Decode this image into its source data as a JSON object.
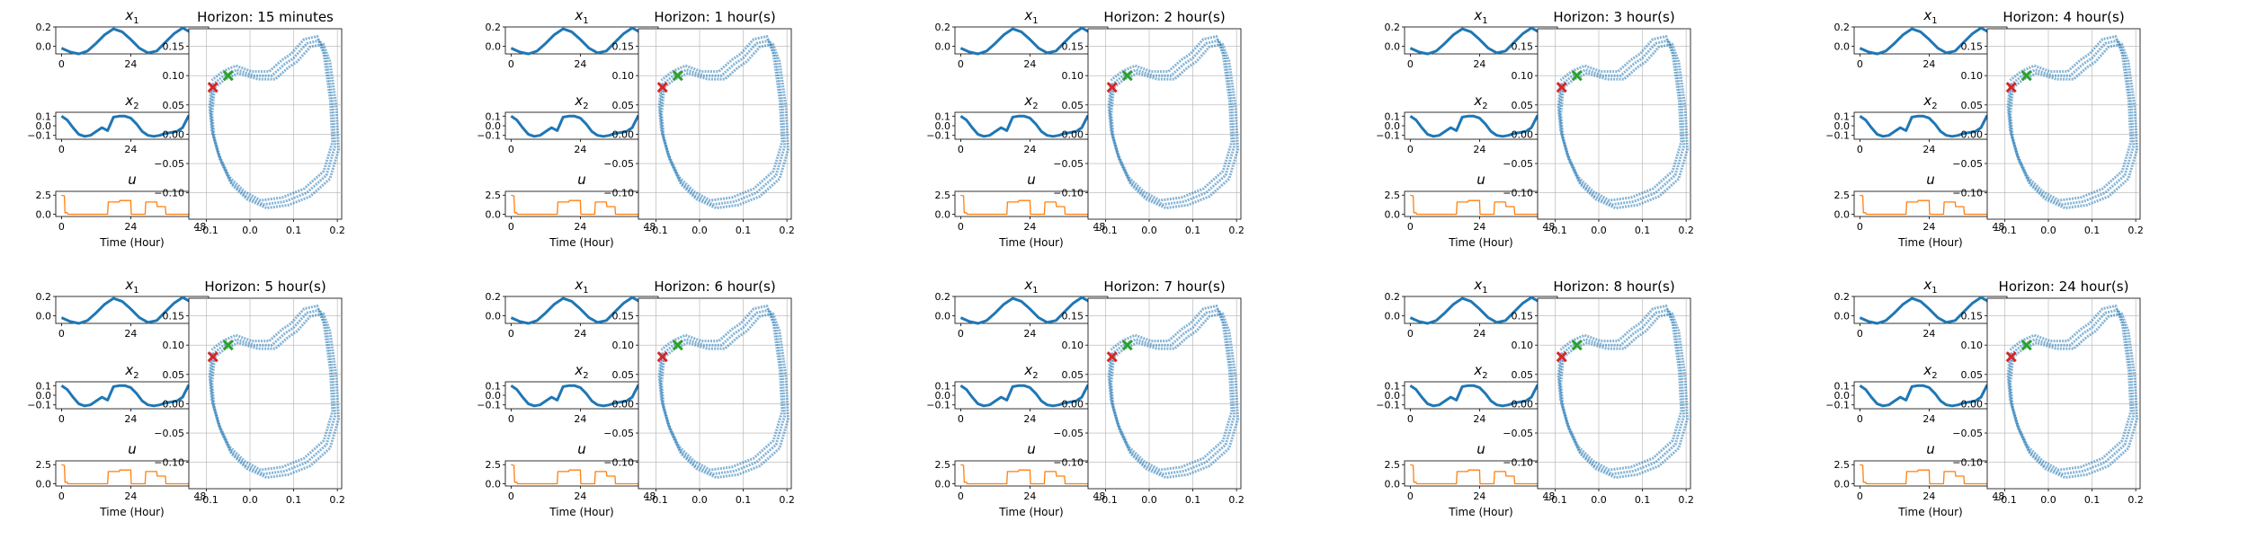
{
  "colors": {
    "state": "#1f77b4",
    "control": "#ff7f0e",
    "phase": "#1f77b4",
    "start_marker": "#d62728",
    "end_marker": "#2ca02c",
    "grid": "#b0b0b0"
  },
  "labels": {
    "x1": "x",
    "x1_sub": "1",
    "x2": "x",
    "x2_sub": "2",
    "u": "u",
    "time_axis": "Time (Hour)"
  },
  "chart_data": {
    "type": "line",
    "time_ticks": [
      0,
      24,
      48
    ],
    "x1": {
      "ylim": [
        -0.08,
        0.2
      ],
      "yticks": [
        "0.2",
        "0.0"
      ],
      "ytick_values": [
        0.2,
        0.0
      ],
      "t": [
        0,
        3,
        6,
        9,
        12,
        15,
        18,
        21,
        24,
        27,
        30,
        33,
        36,
        39,
        42,
        45,
        48,
        50
      ],
      "values": [
        -0.02,
        -0.06,
        -0.08,
        -0.05,
        0.03,
        0.12,
        0.18,
        0.15,
        0.07,
        -0.02,
        -0.07,
        -0.05,
        0.04,
        0.13,
        0.19,
        0.14,
        0.02,
        -0.03
      ]
    },
    "x2": {
      "ylim": [
        -0.14,
        0.14
      ],
      "yticks": [
        "0.1",
        "0.0",
        "−0.1"
      ],
      "ytick_values": [
        0.1,
        0.0,
        -0.1
      ],
      "t": [
        0,
        2,
        4,
        6,
        8,
        10,
        12,
        14,
        16,
        18,
        20,
        22,
        24,
        26,
        28,
        30,
        32,
        34,
        36,
        38,
        40,
        42,
        44,
        46,
        48,
        50
      ],
      "values": [
        0.1,
        0.06,
        -0.02,
        -0.09,
        -0.11,
        -0.1,
        -0.06,
        -0.02,
        -0.05,
        0.09,
        0.1,
        0.1,
        0.08,
        0.02,
        -0.06,
        -0.1,
        -0.11,
        -0.1,
        -0.08,
        -0.07,
        -0.06,
        -0.02,
        0.1,
        0.08,
        0.07,
        0.06
      ]
    },
    "u": {
      "ylim": [
        -0.3,
        3.0
      ],
      "yticks": [
        "2.5",
        "0.0"
      ],
      "ytick_values": [
        2.5,
        0.0
      ],
      "t": [
        0,
        1,
        1.2,
        2,
        2.2,
        16,
        16.2,
        20,
        20.2,
        24,
        24.2,
        29,
        29.2,
        33,
        33.2,
        36,
        36.2,
        44,
        45,
        45.2,
        46,
        46.2,
        47,
        47.5,
        48,
        49,
        50
      ],
      "values": [
        2.5,
        2.4,
        0.2,
        0.2,
        0,
        0,
        1.6,
        1.6,
        1.8,
        1.8,
        0,
        0,
        1.6,
        1.6,
        1.0,
        1.0,
        0,
        0,
        0.4,
        0.2,
        0.2,
        1.0,
        0.6,
        1.5,
        2.8,
        2.0,
        2.9
      ]
    },
    "phase": {
      "xlim": [
        -0.14,
        0.21
      ],
      "xticks": [
        "−0.1",
        "0.0",
        "0.1",
        "0.2"
      ],
      "xtick_values": [
        -0.1,
        0.0,
        0.1,
        0.2
      ],
      "ylim": [
        -0.145,
        0.18
      ],
      "yticks": [
        "0.15",
        "0.10",
        "0.05",
        "0.00",
        "−0.05",
        "−0.10"
      ],
      "ytick_values": [
        0.15,
        0.1,
        0.05,
        0.0,
        -0.05,
        -0.1
      ],
      "loop": [
        [
          -0.085,
          0.08
        ],
        [
          -0.09,
          0.04
        ],
        [
          -0.085,
          0.0
        ],
        [
          -0.07,
          -0.04
        ],
        [
          -0.045,
          -0.08
        ],
        [
          -0.01,
          -0.105
        ],
        [
          0.03,
          -0.12
        ],
        [
          0.08,
          -0.115
        ],
        [
          0.13,
          -0.1
        ],
        [
          0.175,
          -0.07
        ],
        [
          0.195,
          -0.02
        ],
        [
          0.19,
          0.05
        ],
        [
          0.175,
          0.13
        ],
        [
          0.16,
          0.16
        ],
        [
          0.13,
          0.155
        ],
        [
          0.1,
          0.13
        ],
        [
          0.08,
          0.12
        ],
        [
          0.05,
          0.1
        ],
        [
          0.01,
          0.1
        ],
        [
          -0.03,
          0.11
        ],
        [
          -0.06,
          0.1
        ],
        [
          -0.085,
          0.085
        ]
      ],
      "start": [
        -0.085,
        0.08
      ],
      "end": [
        -0.05,
        0.1
      ]
    },
    "panels": [
      {
        "title": "Horizon: 15 minutes"
      },
      {
        "title": "Horizon: 1 hour(s)"
      },
      {
        "title": "Horizon: 2 hour(s)"
      },
      {
        "title": "Horizon: 3 hour(s)"
      },
      {
        "title": "Horizon: 4 hour(s)"
      },
      {
        "title": "Horizon: 5 hour(s)"
      },
      {
        "title": "Horizon: 6 hour(s)"
      },
      {
        "title": "Horizon: 7 hour(s)"
      },
      {
        "title": "Horizon: 8 hour(s)"
      },
      {
        "title": "Horizon: 24 hour(s)"
      }
    ]
  }
}
